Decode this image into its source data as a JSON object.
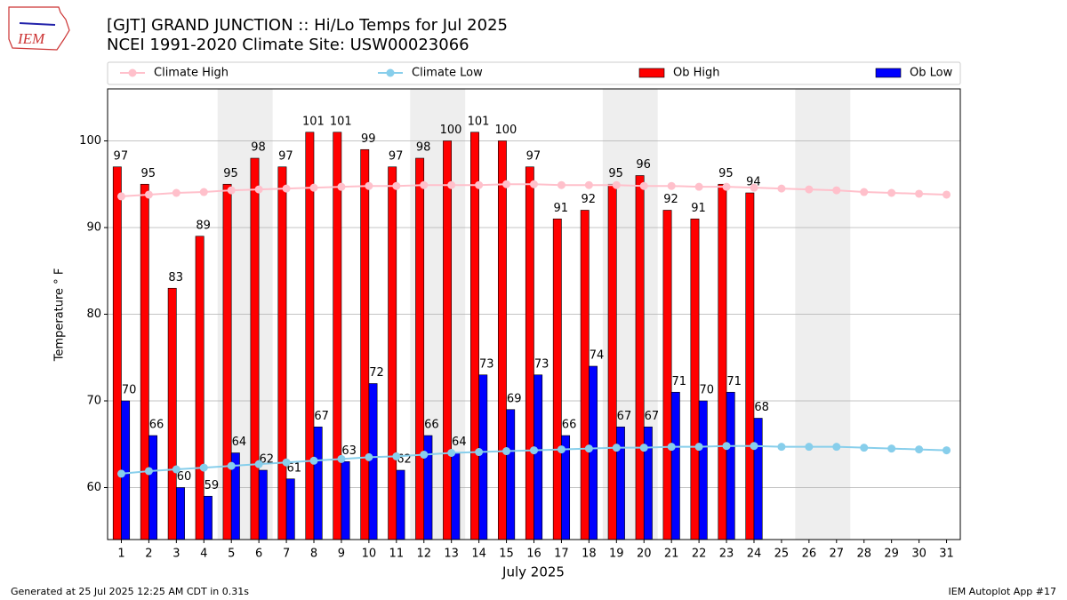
{
  "chart_data": {
    "type": "bar",
    "title": "[GJT] GRAND JUNCTION :: Hi/Lo Temps for Jul 2025",
    "subtitle": "NCEI 1991-2020 Climate Site: USW00023066",
    "logo_text": "IEM",
    "x_label": "July 2025",
    "y_label": "Temperature ° F",
    "footer_left": "Generated at 25 Jul 2025 12:25 AM CDT in 0.31s",
    "footer_right": "IEM Autoplot App #17",
    "x": [
      1,
      2,
      3,
      4,
      5,
      6,
      7,
      8,
      9,
      10,
      11,
      12,
      13,
      14,
      15,
      16,
      17,
      18,
      19,
      20,
      21,
      22,
      23,
      24,
      25,
      26,
      27,
      28,
      29,
      30,
      31
    ],
    "xlim": [
      0.5,
      31.5
    ],
    "xticks": [
      1,
      2,
      3,
      4,
      5,
      6,
      7,
      8,
      9,
      10,
      11,
      12,
      13,
      14,
      15,
      16,
      17,
      18,
      19,
      20,
      21,
      22,
      23,
      24,
      25,
      26,
      27,
      28,
      29,
      30,
      31
    ],
    "ylim": [
      54,
      106
    ],
    "yticks": [
      60,
      70,
      80,
      90,
      100
    ],
    "grid": true,
    "shaded_days": [
      [
        5,
        6
      ],
      [
        12,
        13
      ],
      [
        19,
        20
      ],
      [
        26,
        27
      ]
    ],
    "series": [
      {
        "name": "Climate High",
        "color": "#ffc0cb",
        "mark": "line",
        "values": [
          93.6,
          93.8,
          94.0,
          94.1,
          94.3,
          94.4,
          94.5,
          94.6,
          94.7,
          94.8,
          94.8,
          94.9,
          94.9,
          94.9,
          95.0,
          95.0,
          94.9,
          94.9,
          94.9,
          94.8,
          94.8,
          94.7,
          94.7,
          94.6,
          94.5,
          94.4,
          94.3,
          94.1,
          94.0,
          93.9,
          93.8
        ]
      },
      {
        "name": "Climate Low",
        "color": "#87ceeb",
        "mark": "line",
        "values": [
          61.6,
          61.9,
          62.1,
          62.3,
          62.5,
          62.7,
          62.9,
          63.1,
          63.3,
          63.5,
          63.6,
          63.8,
          64.0,
          64.1,
          64.2,
          64.3,
          64.4,
          64.5,
          64.6,
          64.6,
          64.7,
          64.7,
          64.8,
          64.8,
          64.7,
          64.7,
          64.7,
          64.6,
          64.5,
          64.4,
          64.3
        ]
      },
      {
        "name": "Ob High",
        "color": "#ff0000",
        "mark": "bar",
        "values": [
          97,
          95,
          83,
          89,
          95,
          98,
          97,
          101,
          101,
          99,
          97,
          98,
          100,
          101,
          100,
          97,
          91,
          92,
          95,
          96,
          92,
          91,
          95,
          94,
          null,
          null,
          null,
          null,
          null,
          null,
          null
        ]
      },
      {
        "name": "Ob Low",
        "color": "#0000ff",
        "mark": "bar",
        "values": [
          70,
          66,
          60,
          59,
          64,
          62,
          61,
          67,
          63,
          72,
          62,
          66,
          64,
          73,
          69,
          73,
          66,
          74,
          67,
          67,
          71,
          70,
          71,
          68,
          null,
          null,
          null,
          null,
          null,
          null,
          null
        ]
      }
    ]
  }
}
